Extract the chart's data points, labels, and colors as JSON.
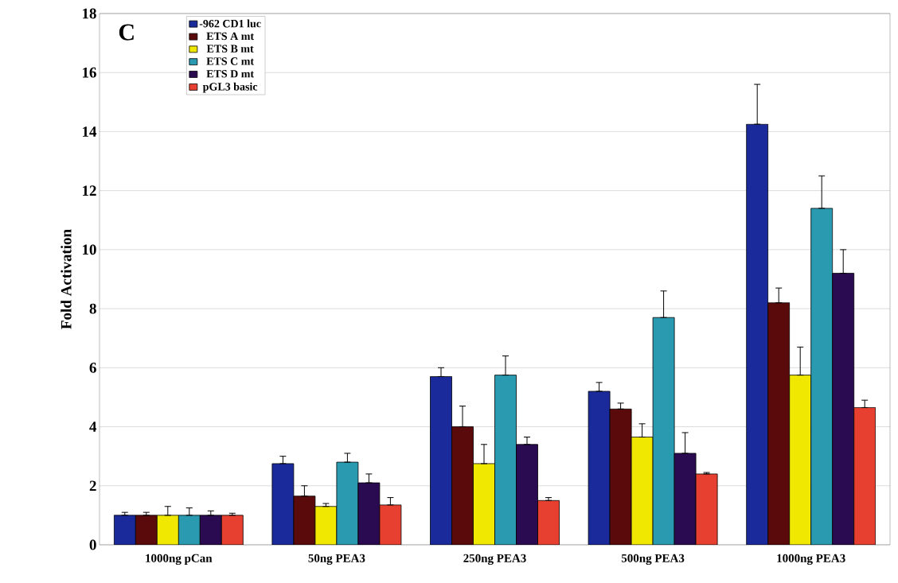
{
  "chart_data": {
    "type": "bar",
    "ylabel": "Fold Activation",
    "annotations": [
      "C"
    ],
    "categories": [
      "1000ng pCan",
      "50ng PEA3",
      "250ng PEA3",
      "500ng PEA3",
      "1000ng PEA3"
    ],
    "series": [
      {
        "name": "-962 CD1 luc",
        "color": "#1a2a9a",
        "values": [
          1.0,
          2.75,
          5.7,
          5.2,
          14.25
        ],
        "errors": [
          [
            1.0,
            1.1
          ],
          [
            2.75,
            3.0
          ],
          [
            5.7,
            6.0
          ],
          [
            5.2,
            5.5
          ],
          [
            14.25,
            15.6
          ]
        ]
      },
      {
        "name": "ETS A mt",
        "color": "#5a0a0a",
        "values": [
          1.0,
          1.65,
          4.0,
          4.6,
          8.2
        ],
        "errors": [
          [
            1.0,
            1.1
          ],
          [
            1.65,
            2.0
          ],
          [
            4.0,
            4.7
          ],
          [
            4.6,
            4.8
          ],
          [
            8.2,
            8.7
          ]
        ]
      },
      {
        "name": "ETS B mt",
        "color": "#f0e800",
        "values": [
          1.0,
          1.3,
          2.75,
          3.65,
          5.75
        ],
        "errors": [
          [
            1.0,
            1.3
          ],
          [
            1.3,
            1.4
          ],
          [
            2.75,
            3.4
          ],
          [
            3.65,
            4.1
          ],
          [
            5.75,
            6.7
          ]
        ]
      },
      {
        "name": "ETS C mt",
        "color": "#2a9ab0",
        "values": [
          1.0,
          2.8,
          5.75,
          7.7,
          11.4
        ],
        "errors": [
          [
            1.0,
            1.25
          ],
          [
            2.8,
            3.1
          ],
          [
            5.75,
            6.4
          ],
          [
            7.7,
            8.6
          ],
          [
            11.4,
            12.5
          ]
        ]
      },
      {
        "name": "ETS D mt",
        "color": "#2a0a50",
        "values": [
          1.0,
          2.1,
          3.4,
          3.1,
          9.2
        ],
        "errors": [
          [
            1.0,
            1.15
          ],
          [
            2.1,
            2.4
          ],
          [
            3.4,
            3.65
          ],
          [
            3.1,
            3.8
          ],
          [
            9.2,
            10.0
          ]
        ]
      },
      {
        "name": "pGL3 basic",
        "color": "#e84030",
        "values": [
          1.0,
          1.35,
          1.5,
          2.4,
          4.65
        ],
        "errors": [
          [
            1.0,
            1.07
          ],
          [
            1.35,
            1.6
          ],
          [
            1.5,
            1.6
          ],
          [
            2.4,
            2.45
          ],
          [
            4.65,
            4.9
          ]
        ]
      }
    ],
    "ylim": [
      0,
      18
    ],
    "yticks": [
      0,
      2,
      4,
      6,
      8,
      10,
      12,
      14,
      16,
      18
    ],
    "grid": "y",
    "legend": "top left"
  }
}
